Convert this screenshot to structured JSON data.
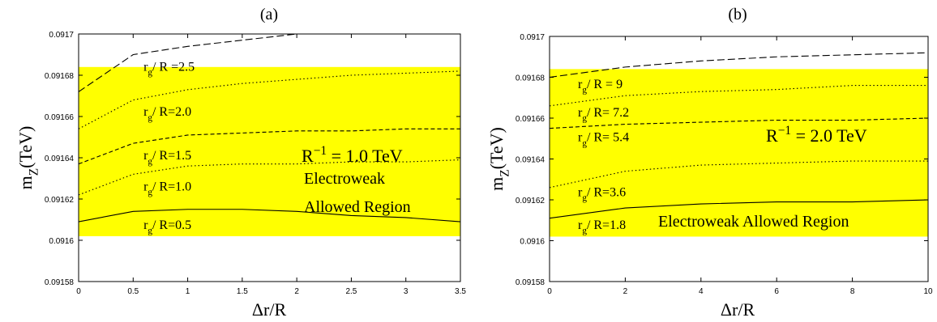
{
  "chart_data": [
    {
      "type": "line",
      "title": "(a)",
      "xlabel": "Δr/R",
      "ylabel": {
        "main": "m",
        "sub": "Z",
        "rest": "(TeV)"
      },
      "xlim": [
        0,
        3.5
      ],
      "xticks": [
        0,
        0.5,
        1,
        1.5,
        2,
        2.5,
        3,
        3.5
      ],
      "ylim": [
        0.09158,
        0.0917
      ],
      "yticks": [
        0.09158,
        0.0916,
        0.09162,
        0.09164,
        0.09166,
        0.09168,
        0.0917
      ],
      "band": [
        0.091602,
        0.091684
      ],
      "band_color": "#ffff00",
      "x": [
        0,
        0.5,
        1,
        1.5,
        2,
        2.5,
        3,
        3.5
      ],
      "series": [
        {
          "label": {
            "main": "r",
            "sub": "g",
            "rest": "/ R =2.5"
          },
          "style": "longdash",
          "color": "#000000",
          "values": [
            0.091672,
            0.09169,
            0.091694,
            0.091697,
            0.0917,
            null,
            null,
            null
          ]
        },
        {
          "label": {
            "main": "r",
            "sub": "g",
            "rest": "/ R=2.0"
          },
          "style": "dotted",
          "color": "#000000",
          "values": [
            0.091654,
            0.091668,
            0.091673,
            0.091676,
            0.091678,
            0.09168,
            0.091681,
            0.091682
          ]
        },
        {
          "label": {
            "main": "r",
            "sub": "g",
            "rest": "/ R=1.5"
          },
          "style": "dashed",
          "color": "#000000",
          "values": [
            0.091637,
            0.091647,
            0.091651,
            0.091652,
            0.091653,
            0.091653,
            0.091654,
            0.091654
          ]
        },
        {
          "label": {
            "main": "r",
            "sub": "g",
            "rest": "/ R=1.0"
          },
          "style": "dotted",
          "color": "#000000",
          "values": [
            0.091622,
            0.091632,
            0.091636,
            0.091637,
            0.091637,
            0.091638,
            0.091638,
            0.091639
          ]
        },
        {
          "label": {
            "main": "r",
            "sub": "g",
            "rest": "/ R=0.5"
          },
          "style": "solid",
          "color": "#000000",
          "values": [
            0.091609,
            0.091614,
            0.091615,
            0.091615,
            0.091614,
            0.091612,
            0.091611,
            0.091609
          ]
        }
      ],
      "annotations": [
        {
          "main": "R",
          "sup": "−1",
          "rest": " = 1.0 TeV"
        },
        {
          "main": "Electroweak"
        },
        {
          "main": "Allowed Region"
        }
      ]
    },
    {
      "type": "line",
      "title": "(b)",
      "xlabel": "Δr/R",
      "ylabel": {
        "main": "m",
        "sub": "Z",
        "rest": "(TeV)"
      },
      "xlim": [
        0,
        10
      ],
      "xticks": [
        0,
        2,
        4,
        6,
        8,
        10
      ],
      "ylim": [
        0.09158,
        0.0917
      ],
      "yticks": [
        0.09158,
        0.0916,
        0.09162,
        0.09164,
        0.09166,
        0.09168,
        0.0917
      ],
      "band": [
        0.091602,
        0.091684
      ],
      "band_color": "#ffff00",
      "x": [
        0,
        2,
        4,
        6,
        8,
        10
      ],
      "series": [
        {
          "label": {
            "main": "r",
            "sub": "g",
            "rest": "/ R = 9"
          },
          "style": "longdash",
          "color": "#000000",
          "values": [
            0.09168,
            0.091685,
            0.091688,
            0.09169,
            0.091691,
            0.091692
          ]
        },
        {
          "label": {
            "main": "r",
            "sub": "g",
            "rest": "/ R= 7.2"
          },
          "style": "dotted",
          "color": "#000000",
          "values": [
            0.091666,
            0.091671,
            0.091673,
            0.091674,
            0.091676,
            0.091676
          ]
        },
        {
          "label": {
            "main": "r",
            "sub": "g",
            "rest": "/ R= 5.4"
          },
          "style": "dashed",
          "color": "#000000",
          "values": [
            0.091655,
            0.091657,
            0.091658,
            0.091659,
            0.091659,
            0.09166
          ]
        },
        {
          "label": {
            "main": "r",
            "sub": "g",
            "rest": "/ R=3.6"
          },
          "style": "dotted",
          "color": "#000000",
          "values": [
            0.091626,
            0.091634,
            0.091637,
            0.091638,
            0.091639,
            0.091639
          ]
        },
        {
          "label": {
            "main": "r",
            "sub": "g",
            "rest": "/ R=1.8"
          },
          "style": "solid",
          "color": "#000000",
          "values": [
            0.091611,
            0.091616,
            0.091618,
            0.091619,
            0.091619,
            0.09162
          ]
        }
      ],
      "annotations": [
        {
          "main": "R",
          "sup": "−1",
          "rest": " = 2.0 TeV"
        },
        {
          "main": "Electroweak Allowed Region"
        }
      ]
    }
  ]
}
